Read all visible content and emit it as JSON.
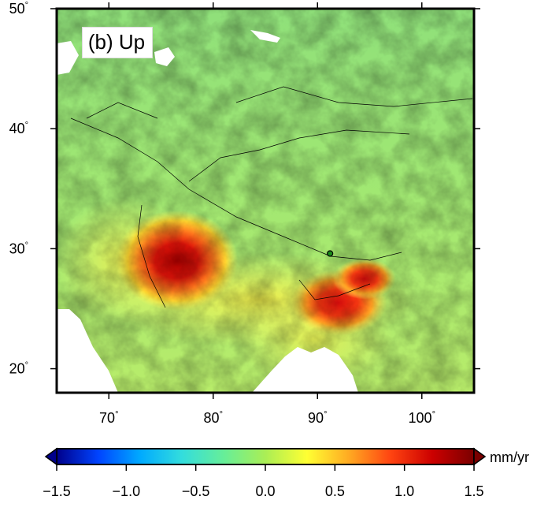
{
  "panel_label": "(b) Up",
  "map": {
    "lon_range": [
      65,
      105
    ],
    "lat_range": [
      18,
      50
    ],
    "lon_ticks": [
      {
        "value": 70,
        "label": "70"
      },
      {
        "value": 80,
        "label": "80"
      },
      {
        "value": 90,
        "label": "90"
      },
      {
        "value": 100,
        "label": "100"
      }
    ],
    "lat_ticks": [
      {
        "value": 20,
        "label": "20"
      },
      {
        "value": 30,
        "label": "30"
      },
      {
        "value": 40,
        "label": "40"
      },
      {
        "value": 50,
        "label": "50"
      }
    ],
    "degree_symbol": "°",
    "hotspots": [
      {
        "lon": 76.5,
        "lat": 29.0,
        "value": 1.5
      },
      {
        "lon": 92.0,
        "lat": 25.5,
        "value": 1.3
      },
      {
        "lon": 94.5,
        "lat": 27.5,
        "value": 1.0
      }
    ],
    "station": {
      "lon": 91.2,
      "lat": 29.6
    }
  },
  "colorbar": {
    "min": -1.5,
    "max": 1.5,
    "unit": "mm/yr",
    "ticks": [
      "−1.5",
      "−1.0",
      "−0.5",
      "0.0",
      "0.5",
      "1.0",
      "1.5"
    ],
    "colors": [
      "#00008b",
      "#0044ff",
      "#00aaff",
      "#33dddd",
      "#66ee99",
      "#aaee55",
      "#ffff33",
      "#ffaa22",
      "#ff4411",
      "#cc0000",
      "#7a0000"
    ]
  }
}
